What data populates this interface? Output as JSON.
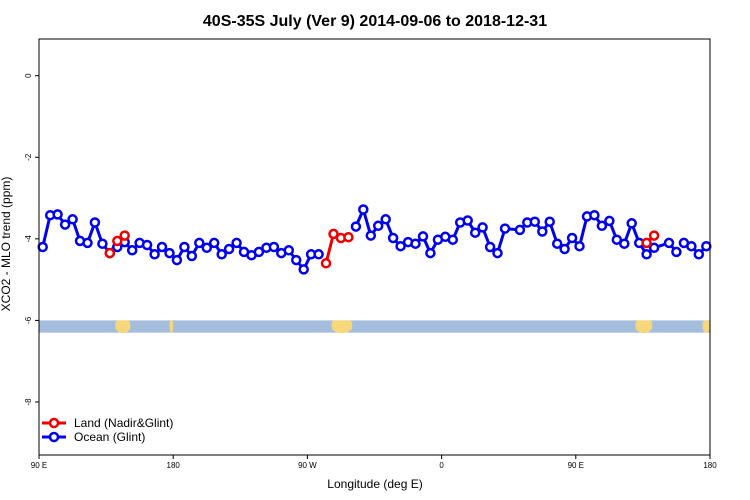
{
  "chart_data": {
    "type": "line",
    "title": "40S-35S July (Ver 9)   2014-09-06 to 2018-12-31",
    "xlabel": "Longitude (deg E)",
    "ylabel": "XCO2 - MLO trend (ppm)",
    "xlim": [
      90,
      450
    ],
    "ylim": [
      -9.3,
      0.9
    ],
    "x_ticks": [
      {
        "value": 90,
        "label": "90 E"
      },
      {
        "value": 162,
        "label": "180"
      },
      {
        "value": 234,
        "label": "90 W"
      },
      {
        "value": 306,
        "label": "0"
      },
      {
        "value": 378,
        "label": "90 E"
      },
      {
        "value": 450,
        "label": "180"
      }
    ],
    "y_ticks": [
      {
        "value": 0,
        "label": "0"
      },
      {
        "value": -2,
        "label": "-2"
      },
      {
        "value": -4,
        "label": "-4"
      },
      {
        "value": -6,
        "label": "-6"
      },
      {
        "value": -8,
        "label": "-8"
      }
    ],
    "legend_position": "bottom-left",
    "band": {
      "y_top": -6.0,
      "y_bottom": -6.3,
      "color": "#a5bddc",
      "land_color": "#f6d77c"
    },
    "land_blobs": [
      {
        "x0": 131,
        "x1": 139
      },
      {
        "x0": 160,
        "x1": 162
      },
      {
        "x0": 247,
        "x1": 258
      },
      {
        "x0": 410,
        "x1": 419
      },
      {
        "x0": 446,
        "x1": 450
      }
    ],
    "series": [
      {
        "name": "Ocean (Glint)",
        "color": "#0000ee",
        "points": [
          [
            92,
            -4.2
          ],
          [
            96,
            -3.42
          ],
          [
            100,
            -3.4
          ],
          [
            104,
            -3.65
          ],
          [
            108,
            -3.52
          ],
          [
            112,
            -4.05
          ],
          [
            116,
            -4.1
          ],
          [
            120,
            -3.6
          ],
          [
            124,
            -4.12
          ],
          [
            128,
            -4.35
          ],
          [
            132,
            -4.2
          ],
          [
            136,
            -4.08
          ],
          [
            140,
            -4.28
          ],
          [
            144,
            -4.1
          ],
          [
            148,
            -4.15
          ],
          [
            152,
            -4.38
          ],
          [
            156,
            -4.2
          ],
          [
            160,
            -4.35
          ],
          [
            164,
            -4.52
          ],
          [
            168,
            -4.2
          ],
          [
            172,
            -4.42
          ],
          [
            176,
            -4.1
          ],
          [
            180,
            -4.22
          ],
          [
            184,
            -4.1
          ],
          [
            188,
            -4.38
          ],
          [
            192,
            -4.25
          ],
          [
            196,
            -4.1
          ],
          [
            200,
            -4.32
          ],
          [
            204,
            -4.4
          ],
          [
            208,
            -4.32
          ],
          [
            212,
            -4.22
          ],
          [
            216,
            -4.2
          ],
          [
            220,
            -4.35
          ],
          [
            224,
            -4.28
          ],
          [
            228,
            -4.52
          ],
          [
            232,
            -4.75
          ],
          [
            236,
            -4.38
          ],
          [
            240,
            -4.38
          ],
          [
            260,
            -3.7
          ],
          [
            264,
            -3.28
          ],
          [
            268,
            -3.92
          ],
          [
            272,
            -3.68
          ],
          [
            276,
            -3.52
          ],
          [
            280,
            -3.98
          ],
          [
            284,
            -4.18
          ],
          [
            288,
            -4.08
          ],
          [
            292,
            -4.12
          ],
          [
            296,
            -3.94
          ],
          [
            300,
            -4.35
          ],
          [
            304,
            -4.02
          ],
          [
            308,
            -3.95
          ],
          [
            312,
            -4.02
          ],
          [
            316,
            -3.6
          ],
          [
            320,
            -3.55
          ],
          [
            324,
            -3.85
          ],
          [
            328,
            -3.72
          ],
          [
            332,
            -4.2
          ],
          [
            336,
            -4.35
          ],
          [
            340,
            -3.75
          ],
          [
            348,
            -3.78
          ],
          [
            352,
            -3.6
          ],
          [
            356,
            -3.58
          ],
          [
            360,
            -3.82
          ],
          [
            364,
            -3.58
          ],
          [
            368,
            -4.12
          ],
          [
            372,
            -4.25
          ],
          [
            376,
            -3.98
          ],
          [
            380,
            -4.18
          ],
          [
            384,
            -3.45
          ],
          [
            388,
            -3.42
          ],
          [
            392,
            -3.68
          ],
          [
            396,
            -3.56
          ],
          [
            400,
            -4.02
          ],
          [
            404,
            -4.12
          ],
          [
            408,
            -3.62
          ],
          [
            412,
            -4.1
          ],
          [
            416,
            -4.38
          ],
          [
            420,
            -4.22
          ],
          [
            428,
            -4.1
          ],
          [
            432,
            -4.32
          ],
          [
            436,
            -4.1
          ],
          [
            440,
            -4.18
          ],
          [
            444,
            -4.38
          ],
          [
            448,
            -4.18
          ]
        ],
        "breaks_after": [
          37,
          60,
          79
        ]
      },
      {
        "name": "Land (Nadir&Glint)",
        "color": "#ee0000",
        "segments": [
          [
            [
              128,
              -4.35
            ],
            [
              132,
              -4.05
            ],
            [
              136,
              -3.92
            ]
          ],
          [
            [
              244,
              -4.6
            ],
            [
              248,
              -3.88
            ],
            [
              252,
              -3.98
            ],
            [
              256,
              -3.96
            ]
          ],
          [
            [
              416,
              -4.1
            ],
            [
              420,
              -3.92
            ]
          ]
        ]
      }
    ]
  }
}
